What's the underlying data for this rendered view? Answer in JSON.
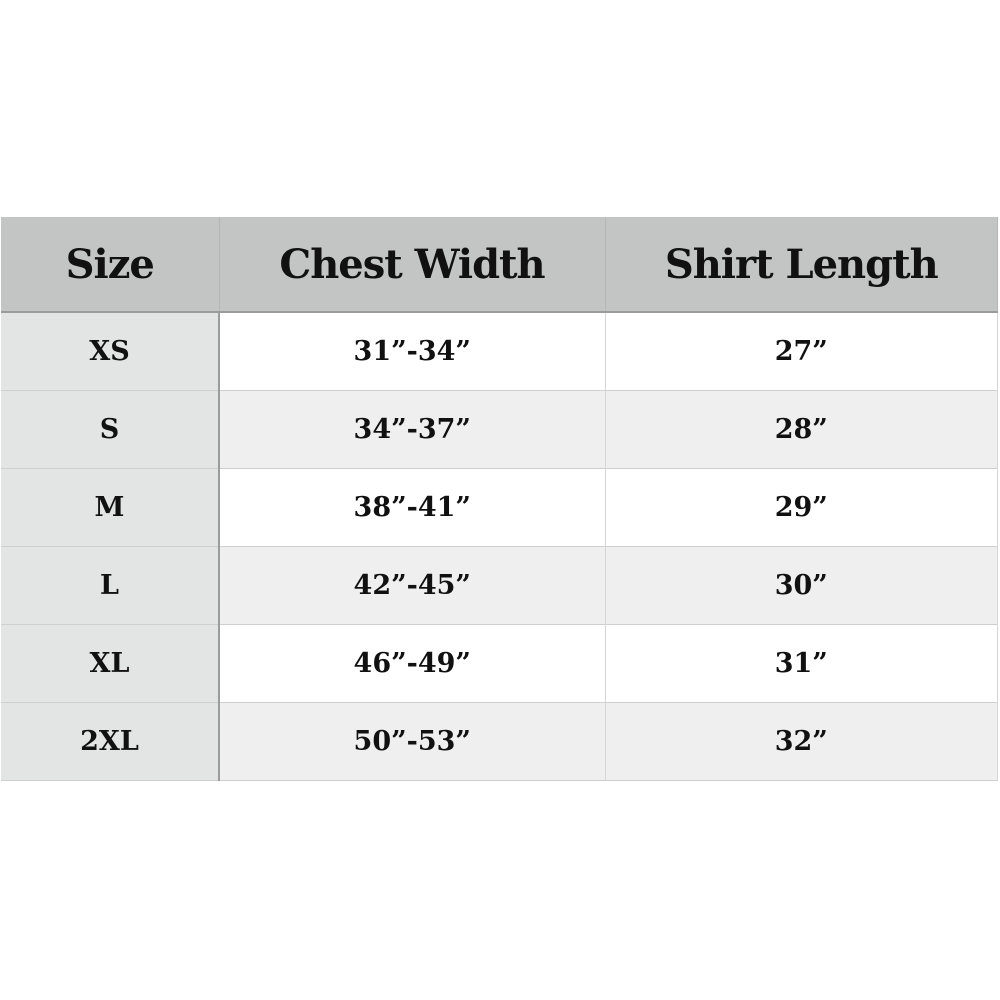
{
  "headers": [
    "Size",
    "Chest Width",
    "Shirt Length"
  ],
  "rows": [
    {
      "size": "XS",
      "chest": "31”-34”",
      "length": "27”"
    },
    {
      "size": "S",
      "chest": "34”-37”",
      "length": "28”"
    },
    {
      "size": "M",
      "chest": "38”-41”",
      "length": "29”"
    },
    {
      "size": "L",
      "chest": "42”-45”",
      "length": "30”"
    },
    {
      "size": "XL",
      "chest": "46”-49”",
      "length": "31”"
    },
    {
      "size": "2XL",
      "chest": "50”-53”",
      "length": "32”"
    }
  ],
  "colors": {
    "header_bg": "#c3c5c4",
    "size_col_bg": "#e3e5e4",
    "alt_row_bg": "#efefef"
  }
}
